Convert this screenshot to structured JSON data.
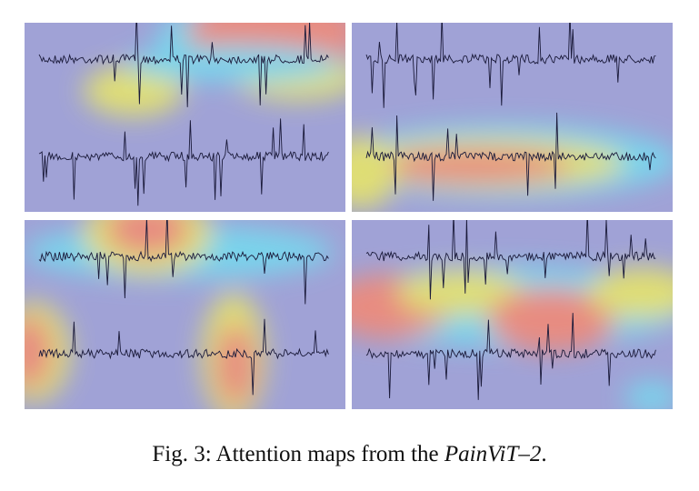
{
  "caption": {
    "label": "Fig. 3:",
    "text": "Attention maps from the",
    "model": "PainViT–2",
    "end": "."
  }
}
